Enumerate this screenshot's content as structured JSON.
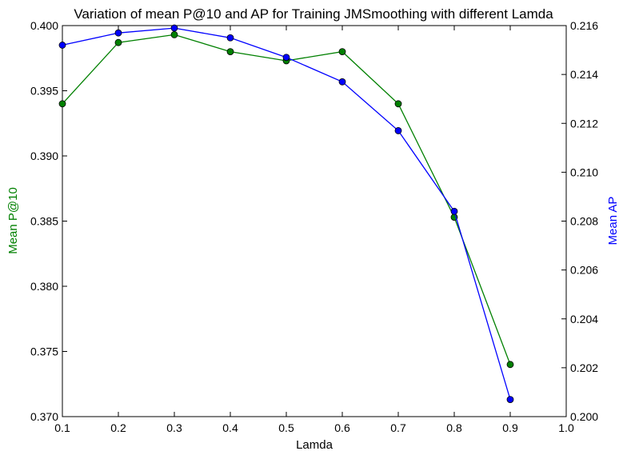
{
  "chart_data": {
    "type": "line",
    "title": "Variation of mean P@10 and AP for Training JMSmoothing with different Lamda",
    "xlabel": "Lamda",
    "ylabel_left": "Mean P@10",
    "ylabel_right": "Mean AP",
    "xlim": [
      0.1,
      1.0
    ],
    "ylim_left": [
      0.37,
      0.4
    ],
    "ylim_right": [
      0.2,
      0.216
    ],
    "x_ticks": [
      "0.1",
      "0.2",
      "0.3",
      "0.4",
      "0.5",
      "0.6",
      "0.7",
      "0.8",
      "0.9",
      "1.0"
    ],
    "y_ticks_left": [
      "0.370",
      "0.375",
      "0.380",
      "0.385",
      "0.390",
      "0.395",
      "0.400"
    ],
    "y_ticks_right": [
      "0.200",
      "0.202",
      "0.204",
      "0.206",
      "0.208",
      "0.210",
      "0.212",
      "0.214",
      "0.216"
    ],
    "x": [
      0.1,
      0.2,
      0.3,
      0.4,
      0.5,
      0.6,
      0.7,
      0.8,
      0.9
    ],
    "series": [
      {
        "name": "Mean P@10",
        "axis": "left",
        "color": "#008000",
        "values": [
          0.394,
          0.3987,
          0.3993,
          0.398,
          0.3973,
          0.398,
          0.394,
          0.3853,
          0.374
        ]
      },
      {
        "name": "Mean AP",
        "axis": "right",
        "color": "#0000ff",
        "values": [
          0.2152,
          0.2157,
          0.2159,
          0.2155,
          0.2147,
          0.2137,
          0.2117,
          0.2084,
          0.2007
        ]
      }
    ],
    "grid": false,
    "legend": "none"
  }
}
